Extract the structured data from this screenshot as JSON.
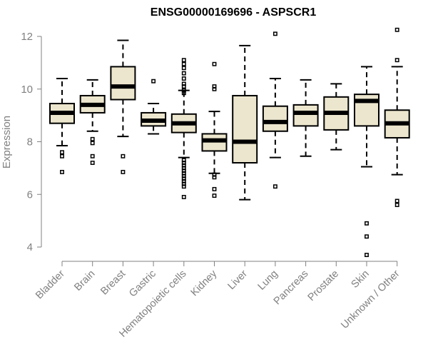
{
  "chart_data": {
    "type": "boxplot",
    "title": "ENSG00000169696 - ASPSCR1",
    "xlabel": "",
    "ylabel": "Expression",
    "ylim": [
      3.4,
      12.6
    ],
    "yticks": [
      4,
      6,
      8,
      10,
      12
    ],
    "grid": false,
    "colors": {
      "box_fill": "#ece6ce",
      "stroke": "#000000",
      "axis": "#808080",
      "label": "#808080"
    },
    "categories": [
      "Bladder",
      "Brain",
      "Breast",
      "Gastric",
      "Hematopoietic cells",
      "Kidney",
      "Liver",
      "Lung",
      "Pancreas",
      "Prostate",
      "Skin",
      "Unknown / Other"
    ],
    "boxes": [
      {
        "name": "Bladder",
        "q1": 8.7,
        "median": 9.1,
        "q3": 9.45,
        "whisker_low": 7.85,
        "whisker_high": 10.4,
        "outliers": [
          7.6,
          7.45,
          6.85
        ]
      },
      {
        "name": "Brain",
        "q1": 9.1,
        "median": 9.4,
        "q3": 9.75,
        "whisker_low": 8.4,
        "whisker_high": 10.35,
        "outliers": [
          8.1,
          7.95,
          7.45,
          7.2
        ]
      },
      {
        "name": "Breast",
        "q1": 9.6,
        "median": 10.1,
        "q3": 10.85,
        "whisker_low": 8.2,
        "whisker_high": 11.85,
        "outliers": [
          7.45,
          6.85
        ]
      },
      {
        "name": "Gastric",
        "q1": 8.6,
        "median": 8.8,
        "q3": 9.1,
        "whisker_low": 8.3,
        "whisker_high": 9.45,
        "outliers": [
          10.3
        ]
      },
      {
        "name": "Hematopoietic cells",
        "q1": 8.35,
        "median": 8.7,
        "q3": 9.05,
        "whisker_low": 7.4,
        "whisker_high": 9.95,
        "outliers": [
          11.1,
          10.95,
          10.8,
          10.6,
          10.4,
          10.2,
          10.1,
          9.95,
          9.85,
          7.3,
          7.2,
          7.1,
          7.0,
          6.9,
          6.8,
          6.7,
          6.6,
          6.5,
          6.4,
          6.3,
          5.9
        ]
      },
      {
        "name": "Kidney",
        "q1": 7.65,
        "median": 8.05,
        "q3": 8.3,
        "whisker_low": 6.8,
        "whisker_high": 9.15,
        "outliers": [
          10.95,
          10.1,
          10.0,
          6.75,
          6.65,
          6.2,
          5.95
        ]
      },
      {
        "name": "Liver",
        "q1": 7.2,
        "median": 8.0,
        "q3": 9.75,
        "whisker_low": 5.8,
        "whisker_high": 11.65,
        "outliers": []
      },
      {
        "name": "Lung",
        "q1": 8.4,
        "median": 8.75,
        "q3": 9.35,
        "whisker_low": 7.4,
        "whisker_high": 10.4,
        "outliers": [
          12.1,
          6.3
        ]
      },
      {
        "name": "Pancreas",
        "q1": 8.6,
        "median": 9.1,
        "q3": 9.4,
        "whisker_low": 7.45,
        "whisker_high": 10.35,
        "outliers": []
      },
      {
        "name": "Prostate",
        "q1": 8.45,
        "median": 9.1,
        "q3": 9.7,
        "whisker_low": 7.7,
        "whisker_high": 10.2,
        "outliers": []
      },
      {
        "name": "Skin",
        "q1": 8.6,
        "median": 9.55,
        "q3": 9.8,
        "whisker_low": 7.05,
        "whisker_high": 10.85,
        "outliers": [
          4.9,
          4.4,
          3.7
        ]
      },
      {
        "name": "Unknown / Other",
        "q1": 8.15,
        "median": 8.7,
        "q3": 9.2,
        "whisker_low": 6.75,
        "whisker_high": 10.85,
        "outliers": [
          12.25,
          11.1,
          5.75,
          5.6
        ]
      }
    ]
  }
}
